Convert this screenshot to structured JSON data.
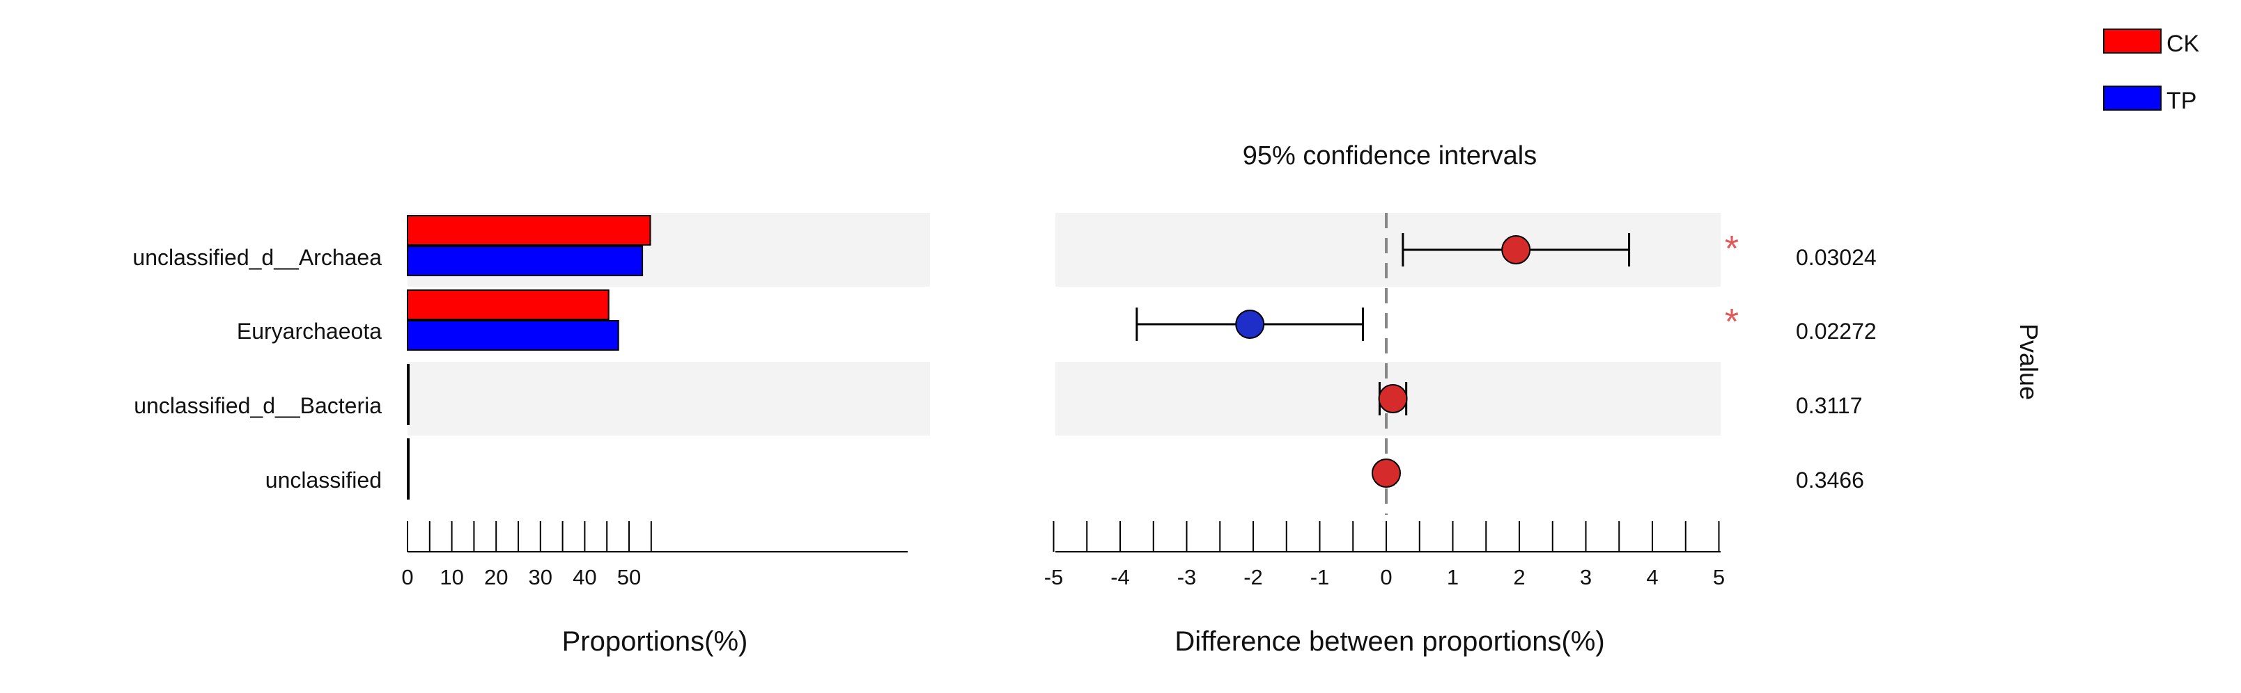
{
  "chart_data": {
    "type": "bar",
    "categories": [
      "unclassified_d__Archaea",
      "Euryarchaeota",
      "unclassified_d__Bacteria",
      "unclassified"
    ],
    "legend": [
      {
        "name": "CK",
        "color": "#ff0000"
      },
      {
        "name": "TP",
        "color": "#0000ff"
      }
    ],
    "proportions": {
      "xlabel": "Proportions(%)",
      "xlim": [
        0,
        55
      ],
      "ticks": [
        "0",
        "10",
        "20",
        "30",
        "40",
        "50"
      ],
      "series": [
        {
          "name": "CK",
          "values": [
            54.8,
            45.4,
            0.3,
            0.05
          ]
        },
        {
          "name": "TP",
          "values": [
            53.0,
            47.6,
            0.3,
            0.05
          ]
        }
      ]
    },
    "confidence_intervals": {
      "title": "95% confidence intervals",
      "xlabel": "Difference between proportions(%)",
      "xlim": [
        -5,
        5
      ],
      "ticks": [
        "-5",
        "-4",
        "-3",
        "-2",
        "-1",
        "0",
        "1",
        "2",
        "3",
        "4",
        "5"
      ],
      "points": [
        {
          "category": "unclassified_d__Archaea",
          "diff": 1.95,
          "ci_low": 0.25,
          "ci_high": 3.65,
          "group": "CK"
        },
        {
          "category": "Euryarchaeota",
          "diff": -2.05,
          "ci_low": -3.75,
          "ci_high": -0.35,
          "group": "TP"
        },
        {
          "category": "unclassified_d__Bacteria",
          "diff": 0.1,
          "ci_low": -0.1,
          "ci_high": 0.3,
          "group": "CK"
        },
        {
          "category": "unclassified",
          "diff": 0.0,
          "ci_low": -0.02,
          "ci_high": 0.02,
          "group": "CK"
        }
      ]
    },
    "pvalues": {
      "title": "Pvalue",
      "values": [
        "0.03024",
        "0.02272",
        "0.3117",
        "0.3466"
      ],
      "significance": [
        "*",
        "*",
        "",
        ""
      ]
    },
    "colors": {
      "ck": "#ff0000",
      "tp": "#0000ff",
      "ck_point": "#d62b2b",
      "tp_point": "#1e2ec8",
      "stripe": "#f3f3f3",
      "star": "#e05a5a"
    }
  }
}
